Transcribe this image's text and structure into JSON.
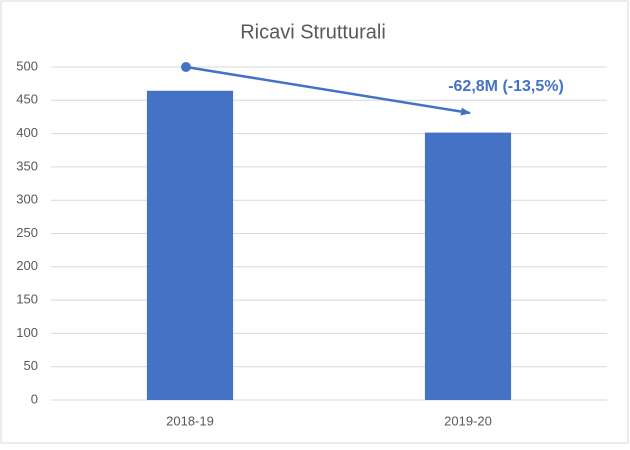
{
  "chart_data": {
    "type": "bar",
    "title": "Ricavi Strutturali",
    "categories": [
      "2018-19",
      "2019-20"
    ],
    "values": [
      464.3,
      401.5
    ],
    "color": "#4472c4",
    "ylim": [
      0,
      500
    ],
    "yticks": [
      0,
      50,
      100,
      150,
      200,
      250,
      300,
      350,
      400,
      450,
      500
    ],
    "grid": true,
    "annotation": "-62,8M (-13,5%)"
  }
}
